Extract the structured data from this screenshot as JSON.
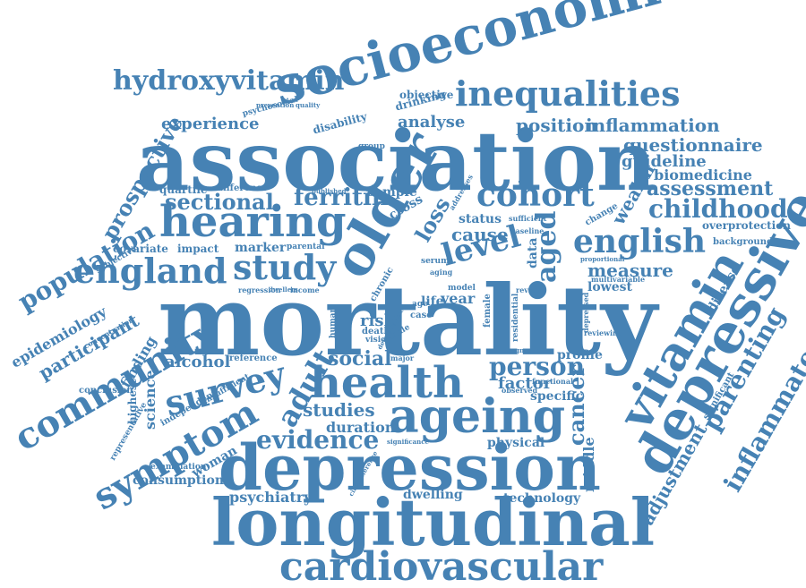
{
  "color": "#4682b4",
  "words": [
    "mortality",
    "association",
    "longitudinal",
    "depression",
    "socioeconomic",
    "older",
    "depressive",
    "vitamin",
    "ageing",
    "hearing",
    "health",
    "cardiovascular",
    "england",
    "study",
    "inequalities",
    "community",
    "symptom",
    "survey",
    "english",
    "level",
    "cohort",
    "hydroxyvitamin",
    "population",
    "inflammatory",
    "parenting",
    "adult",
    "prospective",
    "aged",
    "childhood",
    "evidence",
    "person",
    "cancer",
    "loss",
    "ferritin",
    "sectional",
    "position",
    "inflammation",
    "assessment",
    "participant",
    "questionnaire",
    "guideline",
    "biomedicine",
    "experience",
    "analyse",
    "measure",
    "adjustment",
    "wealth",
    "epidemiology",
    "cause",
    "studies",
    "social",
    "alcohol",
    "risk",
    "factor",
    "duration",
    "physical",
    "psychiatry",
    "technology",
    "consumption",
    "woman",
    "dwelling",
    "middle",
    "disease",
    "finding",
    "science",
    "specific",
    "profile",
    "lowest",
    "status",
    "data",
    "cross",
    "sample",
    "year",
    "life",
    "marker",
    "impact",
    "covariate",
    "quartile",
    "difference",
    "disability",
    "drinking",
    "objective",
    "conclusion",
    "highest",
    "independent",
    "insufficient",
    "reference",
    "examination",
    "representative",
    "concentration",
    "subjective",
    "overprotection",
    "background",
    "significant",
    "change",
    "sufficient",
    "baseline",
    "proportional",
    "multivariable",
    "review",
    "reviewing",
    "depressed",
    "residential",
    "model",
    "regression",
    "income",
    "dwellers",
    "chronic",
    "serum",
    "aging",
    "parental",
    "female",
    "male",
    "case",
    "age",
    "human",
    "death",
    "vision",
    "major",
    "observed",
    "functional",
    "prognostic",
    "significance",
    "published",
    "addresses",
    "psychosocial",
    "circumference",
    "demographic",
    "group",
    "prevention",
    "quality"
  ]
}
